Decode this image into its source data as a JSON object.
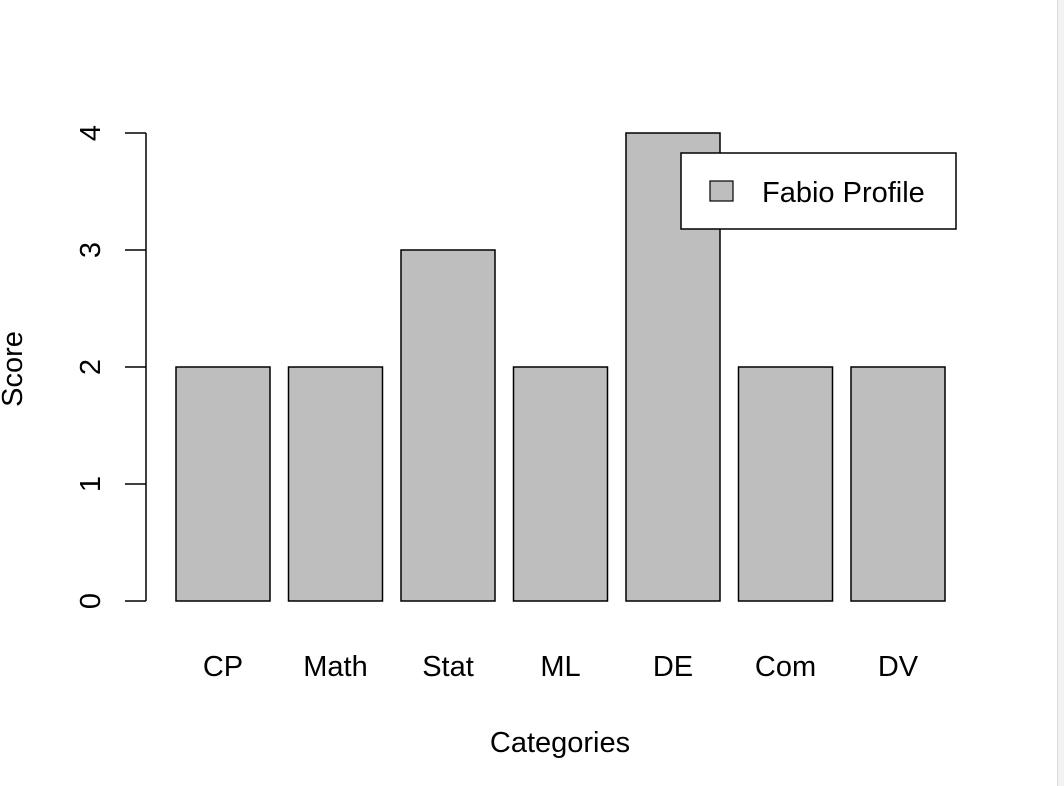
{
  "chart_data": {
    "type": "bar",
    "categories": [
      "CP",
      "Math",
      "Stat",
      "ML",
      "DE",
      "Com",
      "DV"
    ],
    "values": [
      2,
      2,
      3,
      2,
      4,
      2,
      2
    ],
    "title": "",
    "xlabel": "Categories",
    "ylabel": "Score",
    "ylim": [
      0,
      4
    ],
    "yticks": [
      "0",
      "1",
      "2",
      "3",
      "4"
    ],
    "legend": {
      "entries": [
        "Fabio Profile"
      ],
      "placement": "top-right"
    },
    "bar_fill": "#bebebe",
    "bar_stroke": "#000000",
    "grid": false
  }
}
